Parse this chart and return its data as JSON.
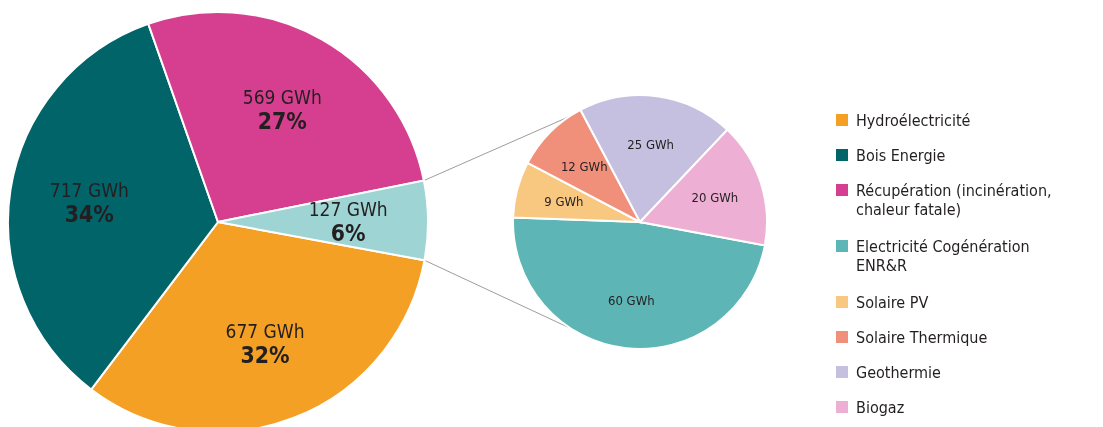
{
  "chart_data": [
    {
      "type": "pie",
      "categories": [
        "Hydroélectricité",
        "Bois Energie",
        "Récupération (incinération, chaleur fatale)",
        null
      ],
      "values": [
        677,
        717,
        569,
        127
      ],
      "colors": [
        "#f4a024",
        "#006468",
        "#d63f8f",
        "#9fd4d4"
      ],
      "value_labels": [
        "677 GWh\n32%",
        "717 GWh\n34%",
        "569 GWh\n27%",
        "127 GWh\n6%"
      ],
      "legend": "right"
    },
    {
      "type": "pie",
      "categories": [
        "Electricité Cogénération ENR&R",
        "Solaire PV",
        "Solaire Thermique",
        "Geothermie",
        "Biogaz"
      ],
      "values": [
        60,
        9,
        12,
        25,
        20
      ],
      "colors": [
        "#5db5b5",
        "#f9c880",
        "#f0907a",
        "#c5c0df",
        "#edafd3"
      ],
      "value_labels": [
        "60 GWh",
        "9 GWh",
        "12 GWh",
        "25 GWh",
        "20 GWh"
      ],
      "legend": "right"
    }
  ]
}
